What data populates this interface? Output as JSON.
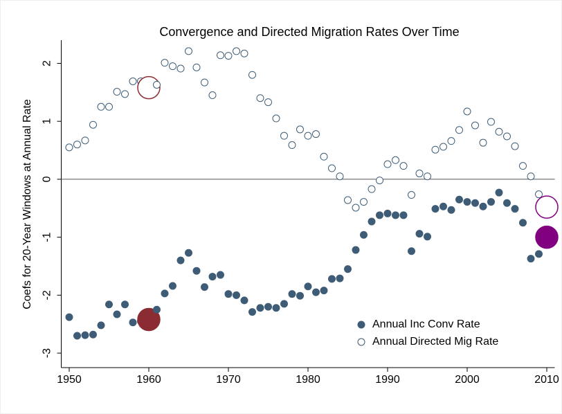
{
  "chart_data": {
    "type": "scatter",
    "title": "Convergence and Directed Migration Rates Over Time",
    "y_label": "Coefs for 20-Year Windows at Annual Rate",
    "x": [
      1950,
      1951,
      1952,
      1953,
      1954,
      1955,
      1956,
      1957,
      1958,
      1959,
      1960,
      1961,
      1962,
      1963,
      1964,
      1965,
      1966,
      1967,
      1968,
      1969,
      1970,
      1971,
      1972,
      1973,
      1974,
      1975,
      1976,
      1977,
      1978,
      1979,
      1980,
      1981,
      1982,
      1983,
      1984,
      1985,
      1986,
      1987,
      1988,
      1989,
      1990,
      1991,
      1992,
      1993,
      1994,
      1995,
      1996,
      1997,
      1998,
      1999,
      2000,
      2001,
      2002,
      2003,
      2004,
      2005,
      2006,
      2007,
      2008,
      2009,
      2010
    ],
    "series": [
      {
        "name": "Annual Inc Conv Rate",
        "color": "#3e5c76",
        "marker": "filled",
        "values": [
          -2.38,
          -2.7,
          -2.69,
          -2.68,
          -2.52,
          -2.16,
          -2.33,
          -2.16,
          -2.47,
          -2.45,
          -2.42,
          -2.25,
          -1.97,
          -1.84,
          -1.4,
          -1.27,
          -1.58,
          -1.86,
          -1.68,
          -1.65,
          -1.98,
          -2.0,
          -2.09,
          -2.29,
          -2.22,
          -2.2,
          -2.22,
          -2.15,
          -1.98,
          -2.01,
          -1.85,
          -1.95,
          -1.92,
          -1.72,
          -1.71,
          -1.55,
          -1.22,
          -0.96,
          -0.73,
          -0.62,
          -0.59,
          -0.62,
          -0.62,
          -1.24,
          -0.94,
          -0.99,
          -0.51,
          -0.47,
          -0.53,
          -0.35,
          -0.39,
          -0.41,
          -0.47,
          -0.39,
          -0.23,
          -0.41,
          -0.51,
          -0.75,
          -1.37,
          -1.29,
          -1.0
        ]
      },
      {
        "name": "Annual Directed Mig Rate",
        "color": "#3e5c76",
        "marker": "hollow",
        "values": [
          0.55,
          0.6,
          0.67,
          0.94,
          1.25,
          1.25,
          1.51,
          1.47,
          1.69,
          1.69,
          1.58,
          1.63,
          2.01,
          1.95,
          1.91,
          2.21,
          1.93,
          1.67,
          1.45,
          2.14,
          2.13,
          2.21,
          2.17,
          1.8,
          1.4,
          1.33,
          1.05,
          0.75,
          0.59,
          0.86,
          0.75,
          0.78,
          0.39,
          0.19,
          0.05,
          -0.36,
          -0.49,
          -0.39,
          -0.17,
          -0.02,
          0.26,
          0.33,
          0.23,
          -0.27,
          0.1,
          0.05,
          0.51,
          0.56,
          0.66,
          0.85,
          1.17,
          0.93,
          0.63,
          0.99,
          0.82,
          0.74,
          0.57,
          0.23,
          0.05,
          -0.26,
          -0.48
        ]
      }
    ],
    "highlight_points": [
      {
        "x": 1960,
        "color": "#8b2c33"
      },
      {
        "x": 2010,
        "color": "#800080"
      }
    ],
    "reference_line": 0,
    "xlim": [
      1949,
      2011
    ],
    "xticks": [
      1950,
      1960,
      1970,
      1980,
      1990,
      2000,
      2010
    ],
    "ylim": [
      -3.25,
      2.4
    ],
    "yticks": [
      -3,
      -2,
      -1,
      0,
      1,
      2
    ],
    "legend": "lower right"
  }
}
